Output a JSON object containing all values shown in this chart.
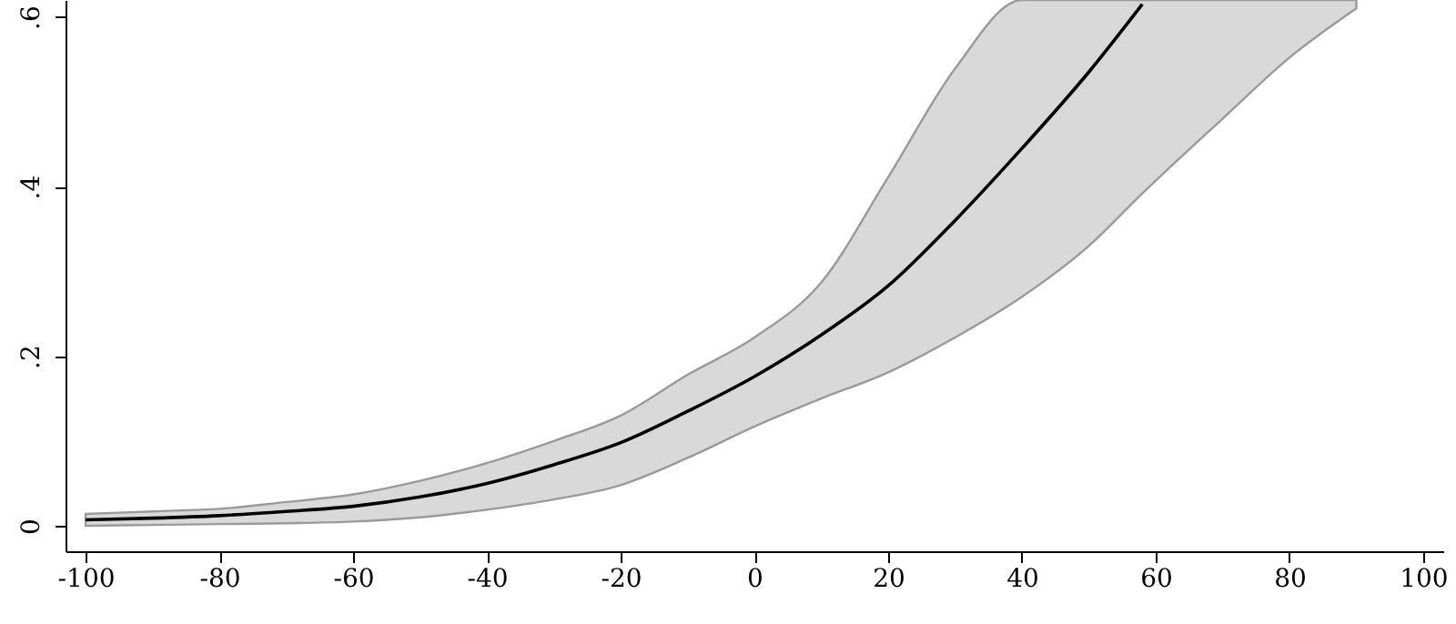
{
  "chart_data": {
    "type": "line",
    "x": [
      -100,
      -90,
      -80,
      -70,
      -60,
      -50,
      -40,
      -30,
      -20,
      -10,
      0,
      10,
      20,
      30,
      40,
      50,
      58,
      60,
      70,
      80,
      90
    ],
    "series": [
      {
        "color": "#000000",
        "values": [
          0.007,
          0.009,
          0.012,
          0.017,
          0.023,
          0.034,
          0.05,
          0.072,
          0.098,
          0.135,
          0.176,
          0.225,
          0.283,
          0.36,
          0.445,
          0.535,
          0.615,
          null,
          null,
          null,
          null
        ],
        "lower": [
          0,
          0.001,
          0.002,
          0.003,
          0.005,
          0.01,
          0.019,
          0.031,
          0.048,
          0.08,
          0.117,
          0.15,
          0.181,
          0.222,
          0.27,
          0.33,
          0.392,
          0.407,
          0.48,
          0.552,
          0.61
        ],
        "upper": [
          0.014,
          0.017,
          0.02,
          0.028,
          0.037,
          0.053,
          0.074,
          0.1,
          0.13,
          0.178,
          0.222,
          0.287,
          0.411,
          0.539,
          0.62,
          0.62,
          0.62,
          0.62,
          0.62,
          0.62,
          0.62
        ]
      }
    ],
    "xlim": [
      -103,
      103
    ],
    "xticks": [
      -100,
      -80,
      -60,
      -40,
      -20,
      0,
      20,
      40,
      60,
      80,
      100
    ],
    "ylim": [
      -0.03,
      0.62
    ],
    "yticks": [
      0,
      {
        "value": 0.2,
        "label": ".2"
      },
      {
        "value": 0.4,
        "label": ".4"
      },
      {
        "value": 0.6,
        "label": ".6"
      }
    ],
    "grid": false,
    "line_style": "solid",
    "marker": "none"
  }
}
